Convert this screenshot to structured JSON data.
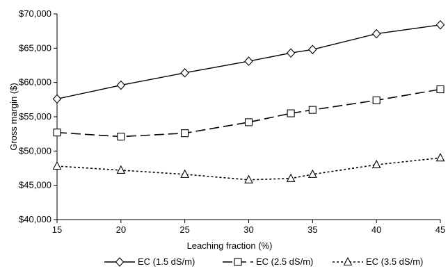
{
  "chart_data": {
    "type": "line",
    "xlabel": "Leaching fraction (%)",
    "ylabel": "Gross margin ($)",
    "xlim": [
      15,
      45
    ],
    "ylim": [
      40000,
      70000
    ],
    "x_ticks": [
      15,
      20,
      25,
      30,
      35,
      40,
      45
    ],
    "y_ticks": [
      40000,
      45000,
      50000,
      55000,
      60000,
      65000,
      70000
    ],
    "y_tick_labels": [
      "$40,000",
      "$45,000",
      "$50,000",
      "$55,000",
      "$60,000",
      "$65,000",
      "$70,000"
    ],
    "grid": false,
    "legend_position": "bottom",
    "x": [
      15,
      20,
      25,
      30,
      33.3,
      35,
      40,
      45
    ],
    "series": [
      {
        "name": "EC (1.5 dS/m)",
        "marker": "diamond",
        "dash": "solid",
        "values": [
          57600,
          59600,
          61400,
          63100,
          64300,
          64800,
          67100,
          68400
        ]
      },
      {
        "name": "EC (2.5 dS/m)",
        "marker": "square",
        "dash": "long-dash",
        "values": [
          52700,
          52100,
          52600,
          54200,
          55500,
          56000,
          57400,
          59000
        ]
      },
      {
        "name": "EC (3.5 dS/m)",
        "marker": "triangle",
        "dash": "dotted",
        "values": [
          47800,
          47200,
          46600,
          45800,
          46000,
          46600,
          48000,
          49000
        ]
      }
    ]
  }
}
